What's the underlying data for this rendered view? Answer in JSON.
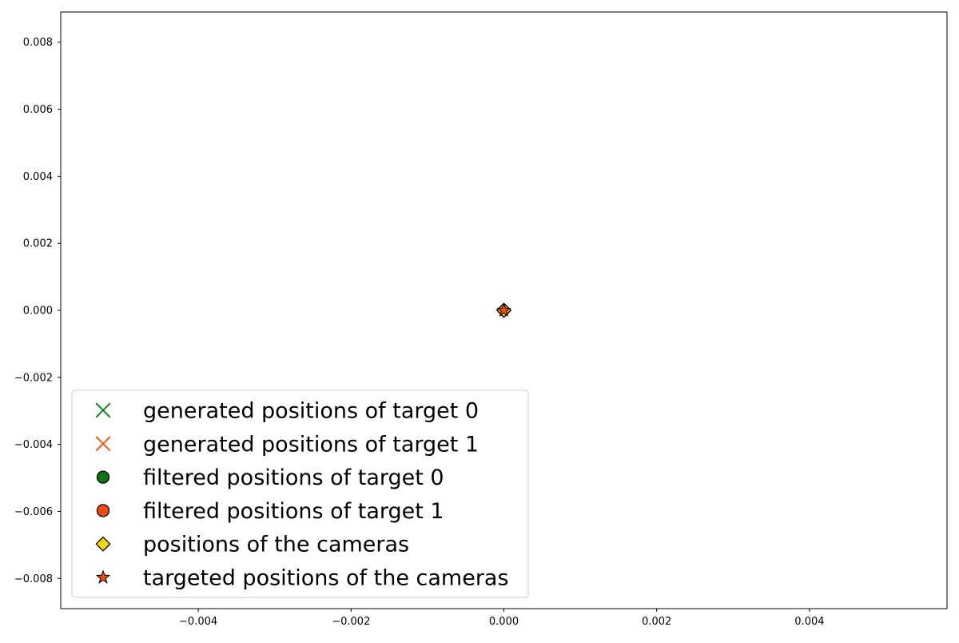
{
  "chart_data": {
    "type": "scatter",
    "title": "",
    "xlabel": "",
    "ylabel": "",
    "xlim": [
      -0.0058,
      0.0058
    ],
    "ylim": [
      -0.0089,
      0.0089
    ],
    "grid": false,
    "legend_position": "lower-left",
    "xticks": [
      -0.004,
      -0.002,
      0.0,
      0.002,
      0.004
    ],
    "xtick_labels": [
      "−0.004",
      "−0.002",
      "0.000",
      "0.002",
      "0.004"
    ],
    "yticks": [
      0.008,
      0.006,
      0.004,
      0.002,
      0.0,
      -0.002,
      -0.004,
      -0.006,
      -0.008
    ],
    "ytick_labels": [
      "0.008",
      "0.006",
      "0.004",
      "0.002",
      "0.000",
      "−0.002",
      "−0.004",
      "−0.006",
      "−0.008"
    ],
    "series": [
      {
        "name": "generated positions of target 0",
        "marker": "x",
        "color": "#1a7f1a",
        "points": []
      },
      {
        "name": "generated positions of target 1",
        "marker": "x",
        "color": "#f05a1e",
        "points": []
      },
      {
        "name": "filtered positions of target 0",
        "marker": "circle",
        "color": "#137313",
        "points": []
      },
      {
        "name": "filtered positions of target 1",
        "marker": "circle",
        "color": "#f04a14",
        "points": []
      },
      {
        "name": "positions of the cameras",
        "marker": "diamond",
        "color": "#f5d60a",
        "points": [
          [
            0.0,
            0.0
          ],
          [
            0.0,
            0.0
          ]
        ]
      },
      {
        "name": "targeted positions of the cameras",
        "marker": "star",
        "color": "#f04a14",
        "points": [
          [
            0.0,
            0.0
          ]
        ]
      }
    ]
  }
}
